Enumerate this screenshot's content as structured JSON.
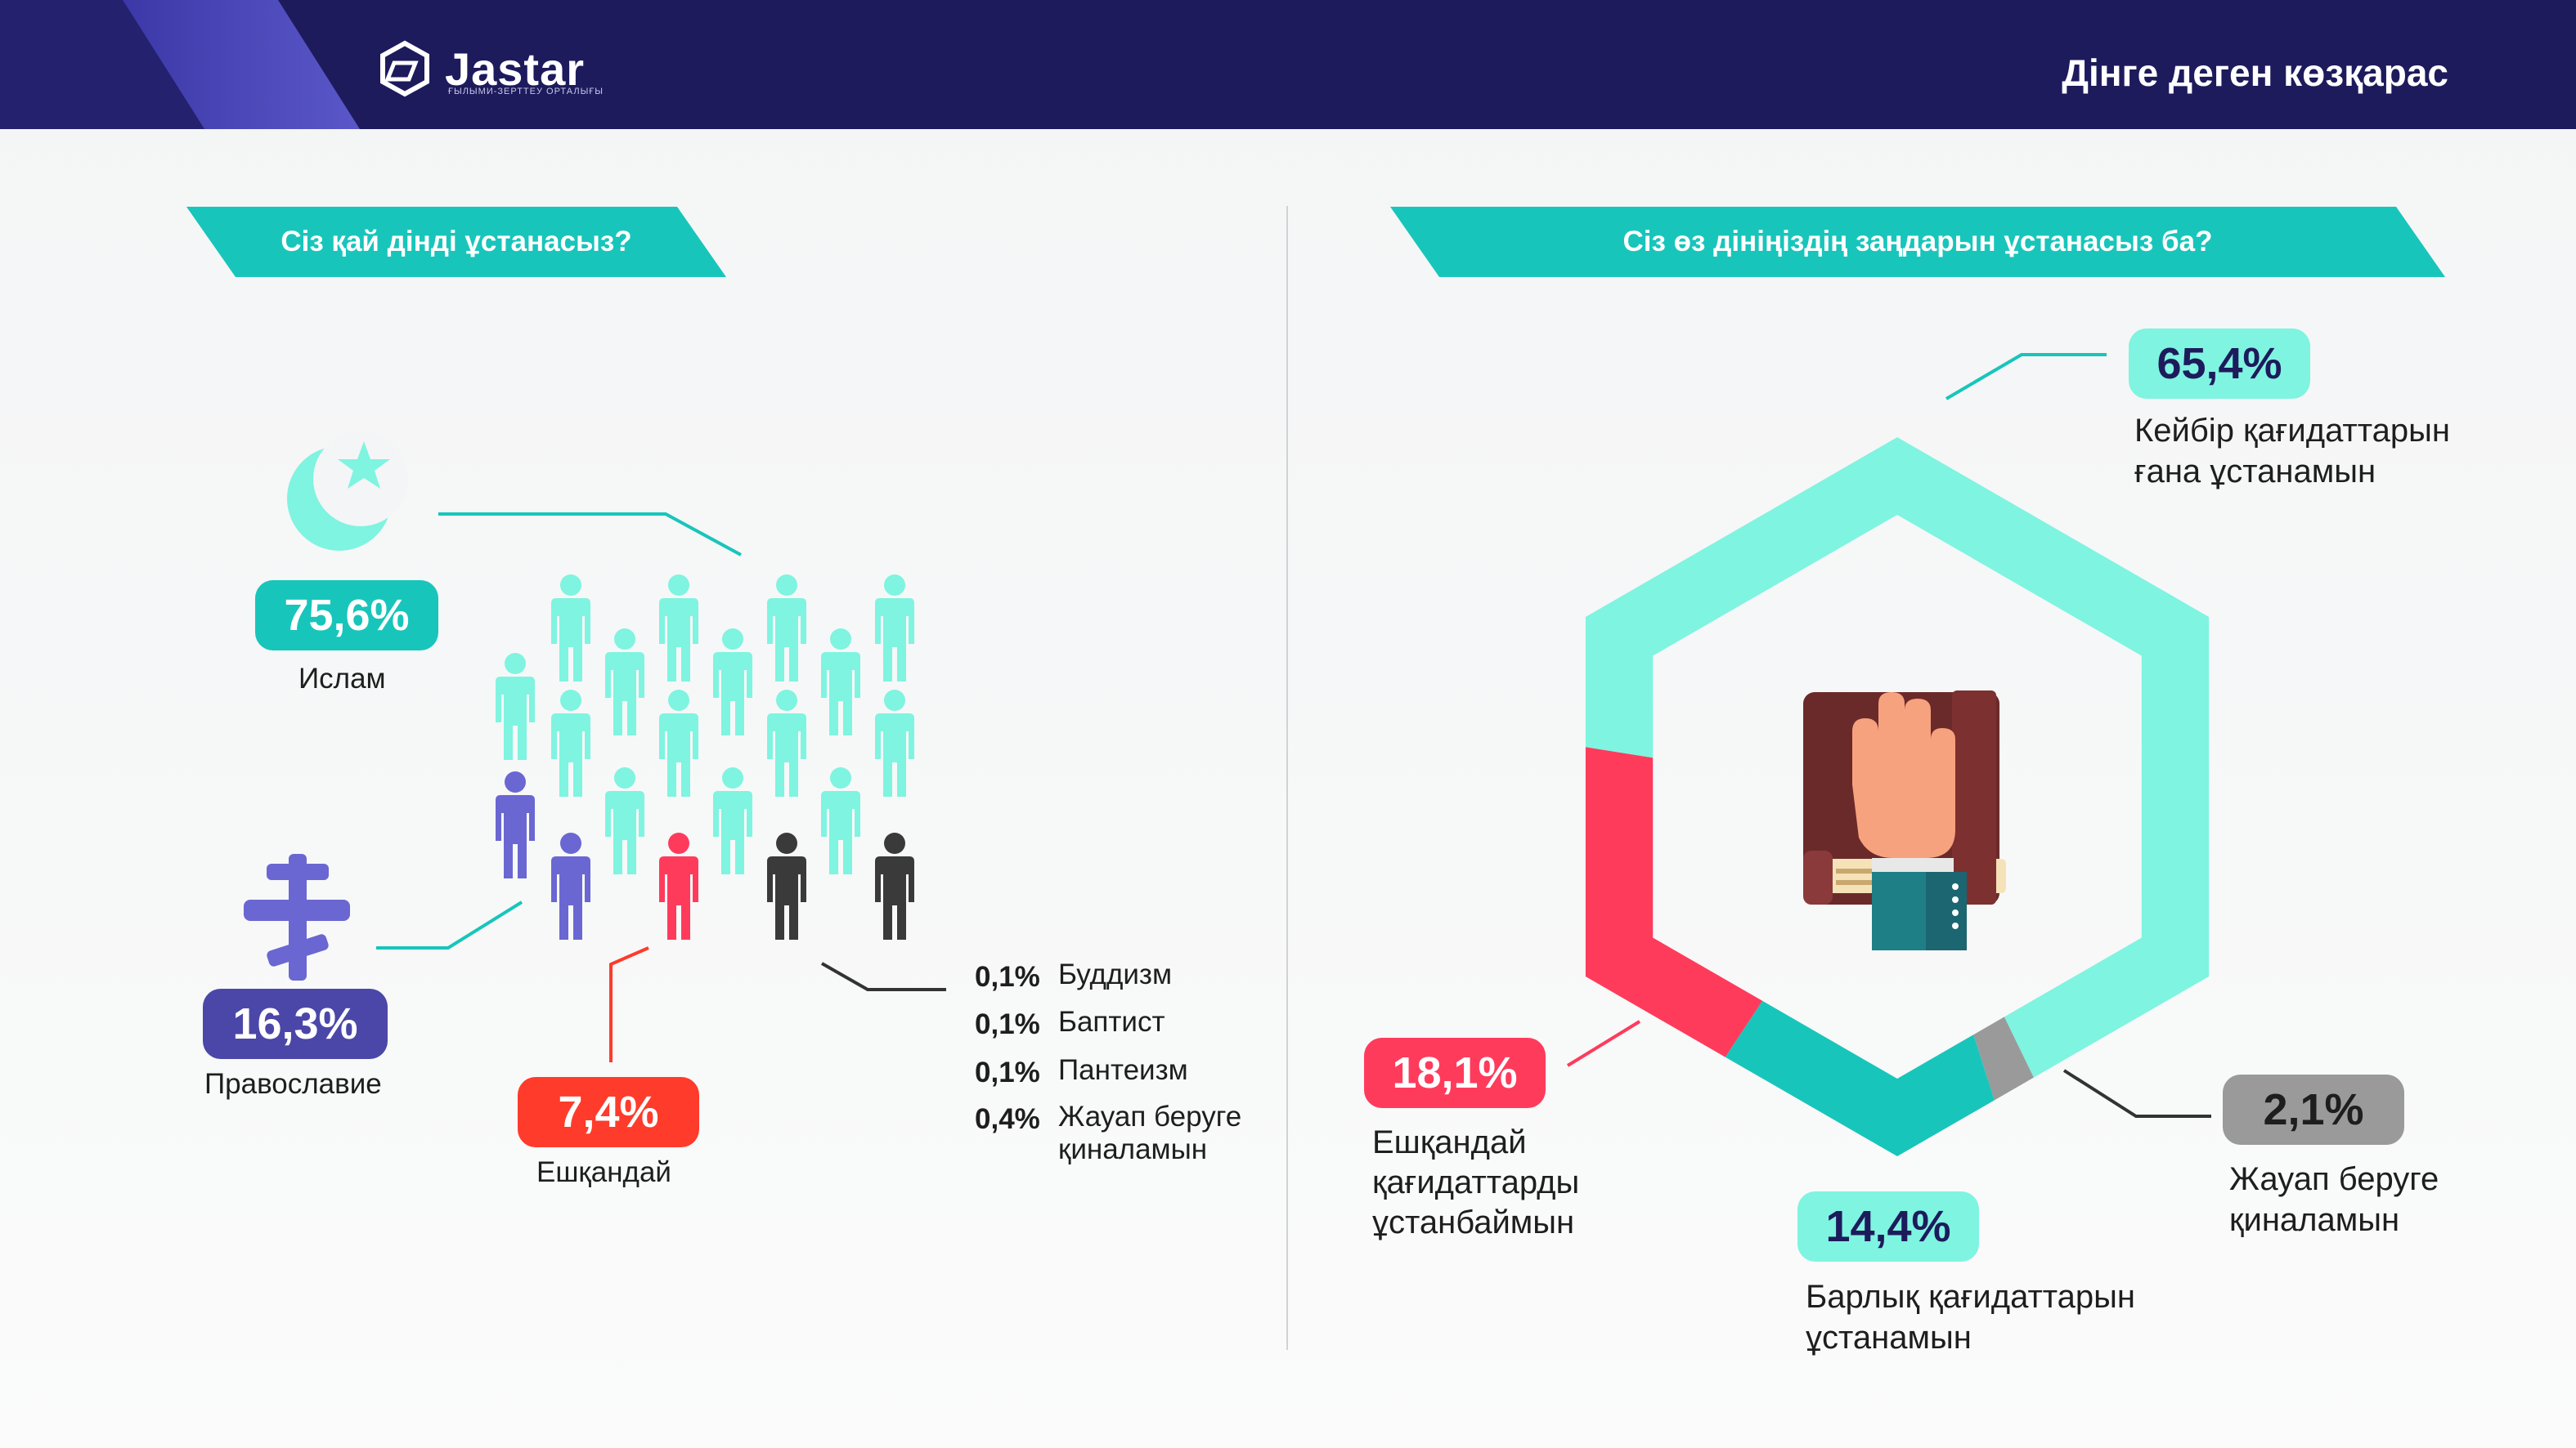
{
  "header": {
    "logo_text": "Jastar",
    "logo_subtext": "ҒЫЛЫМИ-ЗЕРТТЕУ ОРТАЛЫҒЫ",
    "title": "Дінге деген көзқарас"
  },
  "colors": {
    "header": "#1d1b5c",
    "teal": "#18c5bb",
    "mint": "#7ff4e0",
    "navy_purple": "#4b47a8",
    "periwinkle": "#6a67d2",
    "red": "#ff3b5c",
    "orange_red": "#ff3b2b",
    "gray": "#9a9a9a",
    "dark_figure": "#3a3a3a"
  },
  "left": {
    "question": "Сіз қай дінді ұстанасыз?",
    "islam": {
      "pct": "75,6%",
      "label": "Ислам",
      "icon": "crescent-star-icon"
    },
    "orthodox": {
      "pct": "16,3%",
      "label": "Православие",
      "icon": "orthodox-cross-icon"
    },
    "none": {
      "pct": "7,4%",
      "label": "Ешқандай"
    },
    "others": [
      {
        "pct": "0,1%",
        "label": "Буддизм"
      },
      {
        "pct": "0,1%",
        "label": "Баптист"
      },
      {
        "pct": "0,1%",
        "label": "Пантеизм"
      },
      {
        "pct": "0,4%",
        "label": "Жауап беруге қиналамын"
      }
    ]
  },
  "right": {
    "question": "Сіз өз дініңіздің заңдарын ұстанасыз ба?",
    "center_icon": "hand-on-book-icon",
    "items": {
      "some": {
        "pct": "65,4%",
        "label_line1": "Кейбір қағидаттарын",
        "label_line2": "ғана ұстанамын"
      },
      "none": {
        "pct": "18,1%",
        "label_line1": "Ешқандай",
        "label_line2": "қағидаттарды",
        "label_line3": "ұстанбаймын"
      },
      "all": {
        "pct": "14,4%",
        "label_line1": "Барлық қағидаттарын",
        "label_line2": "ұстанамын"
      },
      "na": {
        "pct": "2,1%",
        "label_line1": "Жауап беруге",
        "label_line2": "қиналамын"
      }
    }
  },
  "chart_data": [
    {
      "type": "pictogram",
      "title": "Сіз қай дінді ұстанасыз?",
      "categories": [
        "Ислам",
        "Православие",
        "Ешқандай",
        "Буддизм",
        "Баптист",
        "Пантеизм",
        "Жауап беруге қиналамын"
      ],
      "values": [
        75.6,
        16.3,
        7.4,
        0.1,
        0.1,
        0.1,
        0.4
      ],
      "unit": "%"
    },
    {
      "type": "pie",
      "title": "Сіз өз дініңіздің заңдарын ұстанасыз ба?",
      "categories": [
        "Кейбір қағидаттарын ғана ұстанамын",
        "Ешқандай қағидаттарды ұстанбаймын",
        "Барлық қағидаттарын ұстанамын",
        "Жауап беруге қиналамын"
      ],
      "values": [
        65.4,
        18.1,
        14.4,
        2.1
      ],
      "colors": [
        "#7ff4e0",
        "#ff3b5c",
        "#18c5bb",
        "#9a9a9a"
      ],
      "unit": "%"
    }
  ]
}
